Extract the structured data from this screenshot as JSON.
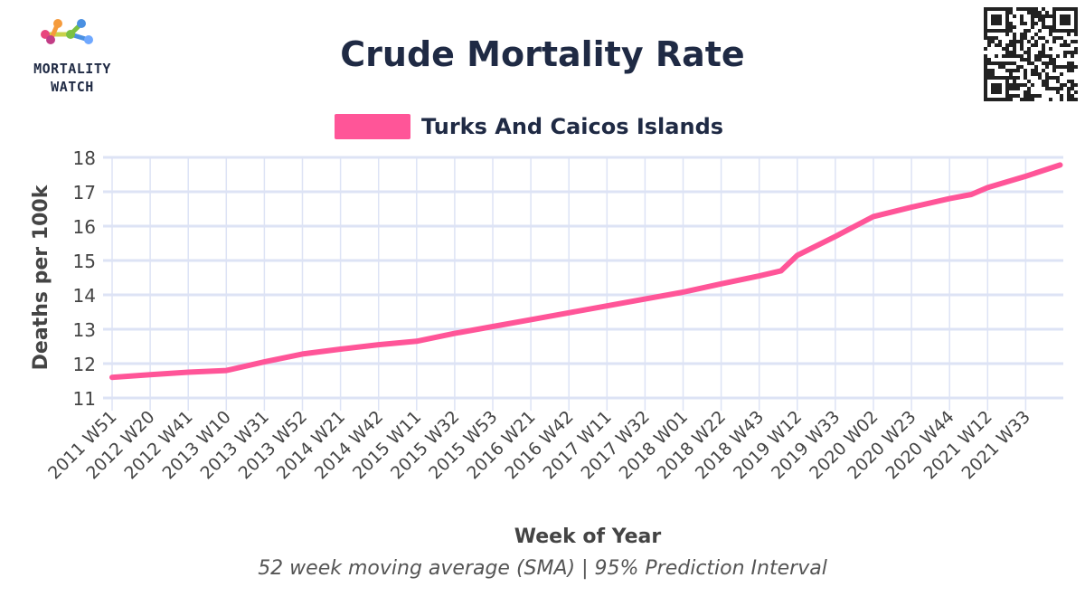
{
  "header": {
    "logo_text_line1": "MORTALITY",
    "logo_text_line2": "WATCH",
    "title": "Crude Mortality Rate"
  },
  "footer": {
    "subtitle": "52 week moving average (SMA) | 95% Prediction Interval"
  },
  "colors": {
    "series": "#ff5598",
    "grid": "#dde3f5",
    "axis_text": "#444444",
    "title": "#1f2a44"
  },
  "chart_data": {
    "type": "line",
    "title": "Crude Mortality Rate",
    "xlabel": "Week of Year",
    "ylabel": "Deaths per 100k",
    "ylim": [
      11,
      18
    ],
    "yticks": [
      11,
      12,
      13,
      14,
      15,
      16,
      17,
      18
    ],
    "grid": true,
    "legend": "top-center",
    "categories": [
      "2011 W51",
      "2012 W20",
      "2012 W41",
      "2013 W10",
      "2013 W31",
      "2013 W52",
      "2014 W21",
      "2014 W42",
      "2015 W11",
      "2015 W32",
      "2015 W53",
      "2016 W21",
      "2016 W42",
      "2017 W11",
      "2017 W32",
      "2018 W01",
      "2018 W22",
      "2018 W43",
      "2019 W12",
      "2019 W33",
      "2020 W02",
      "2020 W23",
      "2020 W44",
      "2021 W12",
      "2021 W33"
    ],
    "series": [
      {
        "name": "Turks And Caicos Islands",
        "color": "#ff5598",
        "x": [
          "2011 W51",
          "2012 W20",
          "2012 W41",
          "2013 W10",
          "2013 W31",
          "2013 W52",
          "2014 W21",
          "2014 W42",
          "2015 W11",
          "2015 W32",
          "2015 W53",
          "2016 W21",
          "2016 W42",
          "2017 W11",
          "2017 W32",
          "2018 W01",
          "2018 W22",
          "2018 W43",
          "2019 W03",
          "2019 W12",
          "2019 W33",
          "2020 W02",
          "2020 W23",
          "2020 W44",
          "2021 W03",
          "2021 W12",
          "2021 W33",
          "2021 W52"
        ],
        "values": [
          11.6,
          11.68,
          11.75,
          11.8,
          12.05,
          12.28,
          12.42,
          12.55,
          12.65,
          12.88,
          13.08,
          13.28,
          13.48,
          13.68,
          13.88,
          14.08,
          14.32,
          14.55,
          14.7,
          15.15,
          15.7,
          16.28,
          16.55,
          16.8,
          16.92,
          17.12,
          17.45,
          17.78
        ]
      }
    ]
  }
}
